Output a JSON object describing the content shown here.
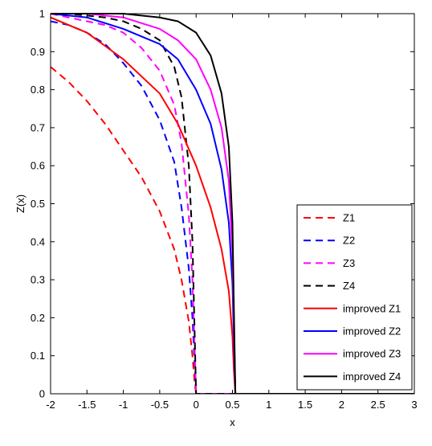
{
  "chart_data": {
    "type": "line",
    "title": "",
    "xlabel": "x",
    "ylabel": "Z(x)",
    "xlim": [
      -2,
      3
    ],
    "ylim": [
      0,
      1
    ],
    "grid": false,
    "legend_position": "bottom-right",
    "x_ticks": [
      -2,
      -1.5,
      -1,
      -0.5,
      0,
      0.5,
      1,
      1.5,
      2,
      2.5,
      3
    ],
    "x_tick_labels": [
      "-2",
      "-1.5",
      "-1",
      "-0.5",
      "0",
      "0.5",
      "1",
      "1.5",
      "2",
      "2.5",
      "3"
    ],
    "y_ticks": [
      0,
      0.1,
      0.2,
      0.3,
      0.4,
      0.5,
      0.6,
      0.7,
      0.8,
      0.9,
      1
    ],
    "y_tick_labels": [
      "0",
      "0.1",
      "0.2",
      "0.3",
      "0.4",
      "0.5",
      "0.6",
      "0.7",
      "0.8",
      "0.9",
      "1"
    ],
    "series": [
      {
        "name": "Z1",
        "color": "#ff0000",
        "style": "dashed",
        "x": [
          -2,
          -1.75,
          -1.5,
          -1.25,
          -1,
          -0.75,
          -0.5,
          -0.3,
          -0.2,
          -0.1,
          -0.05,
          -0.02,
          0,
          0,
          0.5,
          3
        ],
        "y": [
          0.86,
          0.82,
          0.77,
          0.71,
          0.64,
          0.57,
          0.48,
          0.38,
          0.3,
          0.19,
          0.1,
          0.03,
          0.0,
          0,
          0,
          0
        ]
      },
      {
        "name": "Z2",
        "color": "#0000ff",
        "style": "dashed",
        "x": [
          -2,
          -1.75,
          -1.5,
          -1.25,
          -1,
          -0.75,
          -0.5,
          -0.3,
          -0.2,
          -0.1,
          -0.05,
          0,
          0.5,
          3
        ],
        "y": [
          0.98,
          0.97,
          0.95,
          0.92,
          0.87,
          0.81,
          0.72,
          0.61,
          0.49,
          0.33,
          0.2,
          0,
          0,
          0
        ]
      },
      {
        "name": "Z3",
        "color": "#ff00ff",
        "style": "dashed",
        "x": [
          -2,
          -1.75,
          -1.5,
          -1.25,
          -1,
          -0.75,
          -0.5,
          -0.3,
          -0.2,
          -0.1,
          -0.05,
          0,
          0.5,
          3
        ],
        "y": [
          1.0,
          0.99,
          0.98,
          0.97,
          0.95,
          0.91,
          0.85,
          0.76,
          0.66,
          0.47,
          0.3,
          0,
          0,
          0
        ]
      },
      {
        "name": "Z4",
        "color": "#000000",
        "style": "dashed",
        "x": [
          -2,
          -1.75,
          -1.5,
          -1.25,
          -1,
          -0.75,
          -0.5,
          -0.3,
          -0.2,
          -0.1,
          -0.05,
          0,
          0.5,
          3
        ],
        "y": [
          1.0,
          1.0,
          0.995,
          0.99,
          0.98,
          0.96,
          0.93,
          0.86,
          0.78,
          0.6,
          0.4,
          0,
          0,
          0
        ]
      },
      {
        "name": "improved Z1",
        "color": "#ff0000",
        "style": "solid",
        "x": [
          -2,
          -1.5,
          -1,
          -0.5,
          -0.25,
          0,
          0.2,
          0.35,
          0.45,
          0.5,
          0.52,
          0.54,
          1,
          3
        ],
        "y": [
          0.99,
          0.95,
          0.88,
          0.79,
          0.71,
          0.6,
          0.49,
          0.38,
          0.27,
          0.15,
          0.06,
          0,
          0,
          0
        ]
      },
      {
        "name": "improved Z2",
        "color": "#0000ff",
        "style": "solid",
        "x": [
          -2,
          -1.5,
          -1,
          -0.5,
          -0.25,
          0,
          0.2,
          0.35,
          0.45,
          0.5,
          0.52,
          0.54,
          1,
          3
        ],
        "y": [
          1.0,
          0.99,
          0.96,
          0.92,
          0.88,
          0.8,
          0.71,
          0.59,
          0.45,
          0.29,
          0.13,
          0,
          0,
          0
        ]
      },
      {
        "name": "improved Z3",
        "color": "#ff00ff",
        "style": "solid",
        "x": [
          -2,
          -1.5,
          -1,
          -0.5,
          -0.25,
          0,
          0.2,
          0.35,
          0.45,
          0.5,
          0.52,
          0.54,
          1,
          3
        ],
        "y": [
          1.0,
          1.0,
          0.99,
          0.96,
          0.93,
          0.88,
          0.8,
          0.7,
          0.56,
          0.37,
          0.18,
          0,
          0,
          0
        ]
      },
      {
        "name": "improved Z4",
        "color": "#000000",
        "style": "solid",
        "x": [
          -2,
          -1.5,
          -1,
          -0.5,
          -0.25,
          0,
          0.2,
          0.35,
          0.45,
          0.5,
          0.52,
          0.54,
          1,
          3
        ],
        "y": [
          1.0,
          1.0,
          1.0,
          0.99,
          0.98,
          0.95,
          0.89,
          0.79,
          0.65,
          0.45,
          0.22,
          0,
          0,
          0
        ]
      }
    ]
  }
}
